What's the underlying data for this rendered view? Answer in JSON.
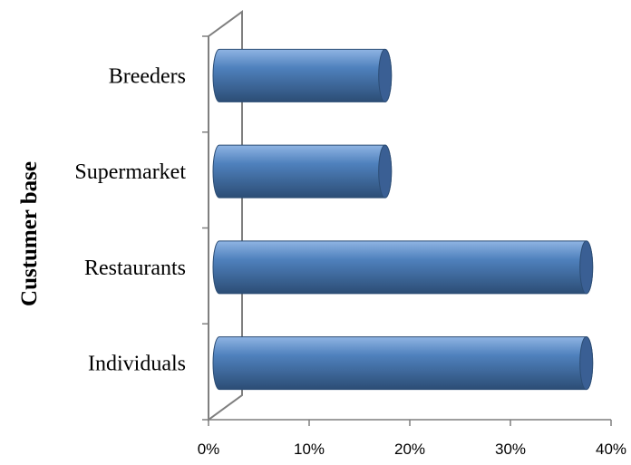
{
  "chart_data": {
    "type": "bar",
    "orientation": "horizontal",
    "style": "3d-cylinder",
    "categories": [
      "Individuals",
      "Restaurants",
      "Supermarket",
      "Breeders"
    ],
    "values": [
      0.37,
      0.37,
      0.17,
      0.17
    ],
    "title": "",
    "xlabel": "",
    "ylabel": "Custumer base",
    "xlim": [
      0,
      0.4
    ],
    "x_ticks": [
      0,
      0.1,
      0.2,
      0.3,
      0.4
    ],
    "x_tick_labels": [
      "0%",
      "10%",
      "20%",
      "30%",
      "40%"
    ],
    "grid": false,
    "legend": "none",
    "colors": {
      "bar_top": "#8fb4e3",
      "bar_mid": "#4f81bd",
      "bar_bottom": "#2c4d75",
      "bar_end": "#3a5f94",
      "axis": "#7f7f7f"
    }
  }
}
